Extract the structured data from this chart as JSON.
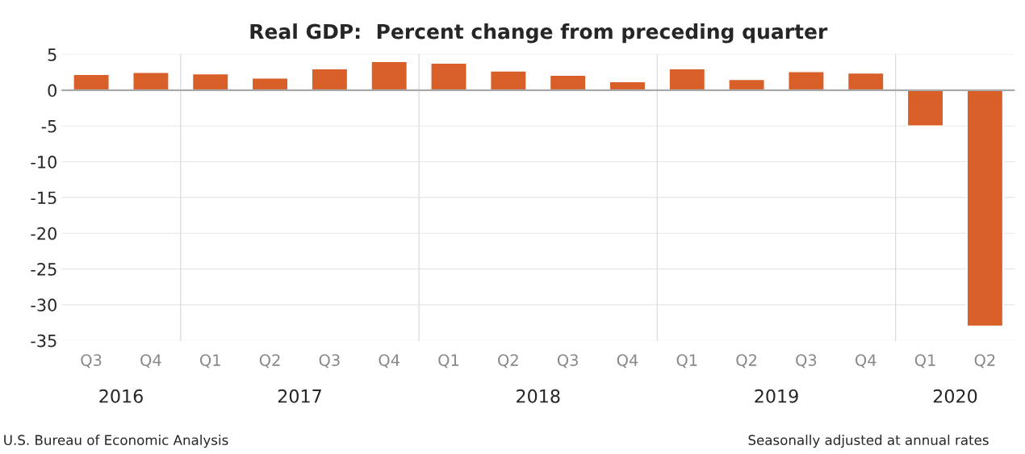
{
  "chart_data": {
    "type": "bar",
    "title": "Real GDP:  Percent change from preceding quarter",
    "categories": [
      "Q3",
      "Q4",
      "Q1",
      "Q2",
      "Q3",
      "Q4",
      "Q1",
      "Q2",
      "Q3",
      "Q4",
      "Q1",
      "Q2",
      "Q3",
      "Q4",
      "Q1",
      "Q2"
    ],
    "values": [
      2.2,
      2.5,
      2.3,
      1.7,
      3.0,
      4.0,
      3.8,
      2.7,
      2.1,
      1.2,
      3.0,
      1.5,
      2.6,
      2.4,
      -5.0,
      -33.0
    ],
    "color": "#d85f27",
    "ylim": [
      -35,
      5
    ],
    "yticks": [
      -35,
      -30,
      -25,
      -20,
      -15,
      -10,
      -5,
      0,
      5
    ],
    "grid": "y",
    "annotations": [
      "2016",
      "2017",
      "2018",
      "2019",
      "2020",
      "U.S. Bureau of Economic Analysis",
      "Seasonally adjusted at annual rates"
    ]
  }
}
